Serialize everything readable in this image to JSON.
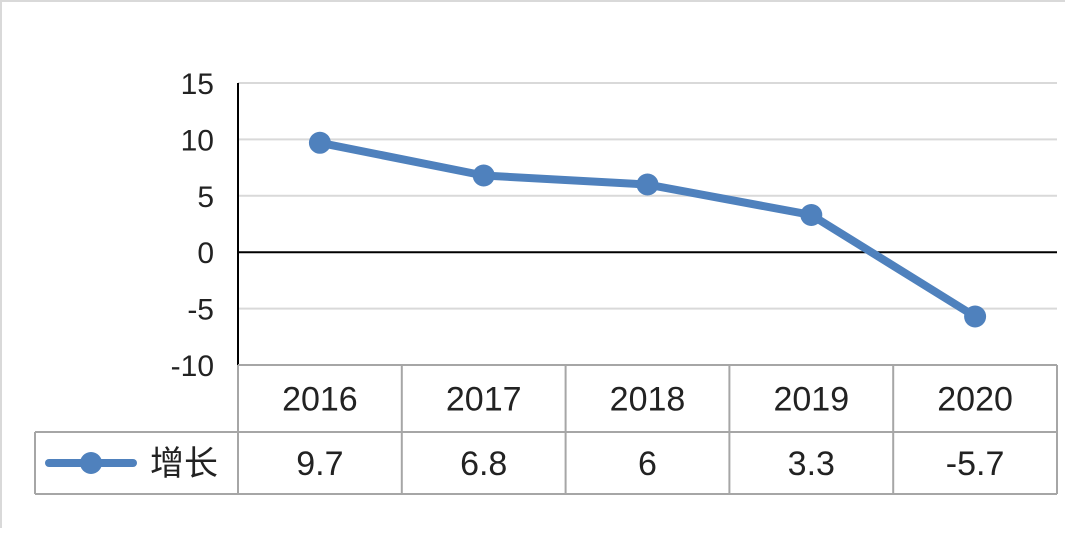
{
  "chart_data": {
    "type": "line",
    "title": "",
    "xlabel": "",
    "ylabel": "",
    "categories": [
      "2016",
      "2017",
      "2018",
      "2019",
      "2020"
    ],
    "series": [
      {
        "name": "增长",
        "values": [
          9.7,
          6.8,
          6,
          3.3,
          -5.7
        ],
        "value_labels": [
          "9.7",
          "6.8",
          "6",
          "3.3",
          "-5.7"
        ],
        "color": "#4f81bd",
        "marker": "circle"
      }
    ],
    "ylim": [
      -10,
      15
    ],
    "yticks": [
      "15",
      "10",
      "5",
      "0",
      "-5",
      "-10"
    ],
    "grid": true,
    "gridline_color": "#d9d9d9",
    "zero_line_color": "#000000",
    "data_table": true,
    "legend": "data-table-left"
  }
}
